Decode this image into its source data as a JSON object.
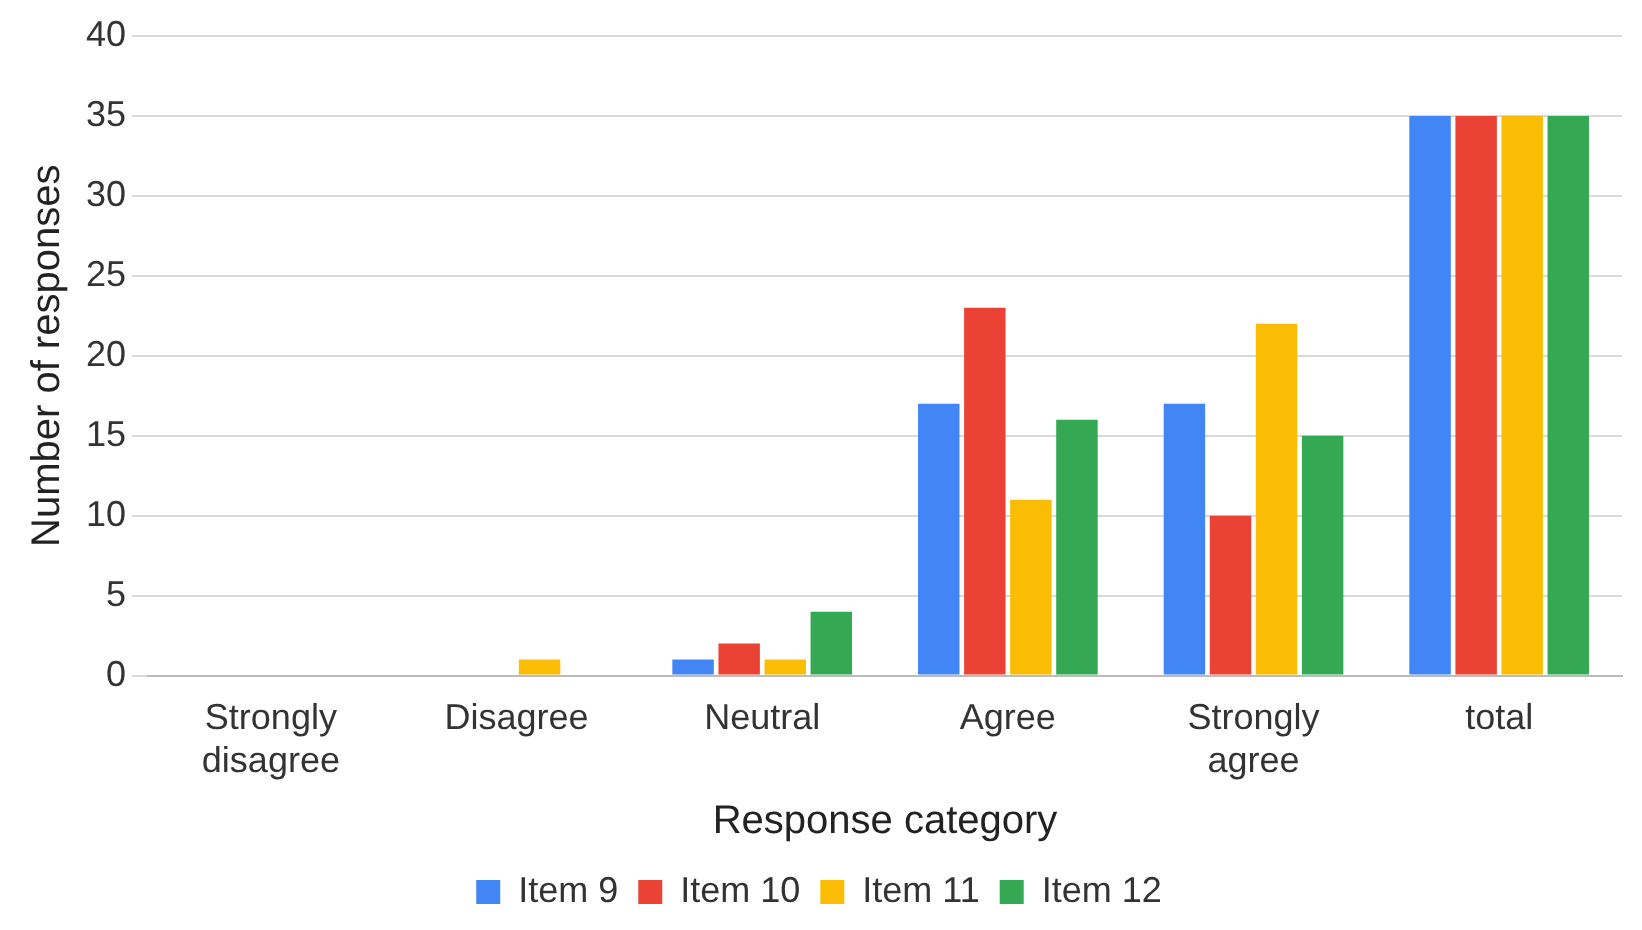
{
  "chart_data": {
    "type": "bar",
    "xlabel": "Response category",
    "ylabel": "Number of responses",
    "categories": [
      "Strongly disagree",
      "Disagree",
      "Neutral",
      "Agree",
      "Strongly agree",
      "total"
    ],
    "series": [
      {
        "name": "Item 9",
        "color": "#4285f4",
        "values": [
          0,
          0,
          1,
          17,
          17,
          35
        ]
      },
      {
        "name": "Item 10",
        "color": "#ea4335",
        "values": [
          0,
          0,
          2,
          23,
          10,
          35
        ]
      },
      {
        "name": "Item 11",
        "color": "#fbbc04",
        "values": [
          0,
          1,
          1,
          11,
          22,
          35
        ]
      },
      {
        "name": "Item 12",
        "color": "#34a853",
        "values": [
          0,
          0,
          4,
          16,
          15,
          35
        ]
      }
    ],
    "ylim": [
      0,
      40
    ],
    "yticks": [
      0,
      5,
      10,
      15,
      20,
      25,
      30,
      35,
      40
    ],
    "grid": "y",
    "legend": "bottom"
  }
}
